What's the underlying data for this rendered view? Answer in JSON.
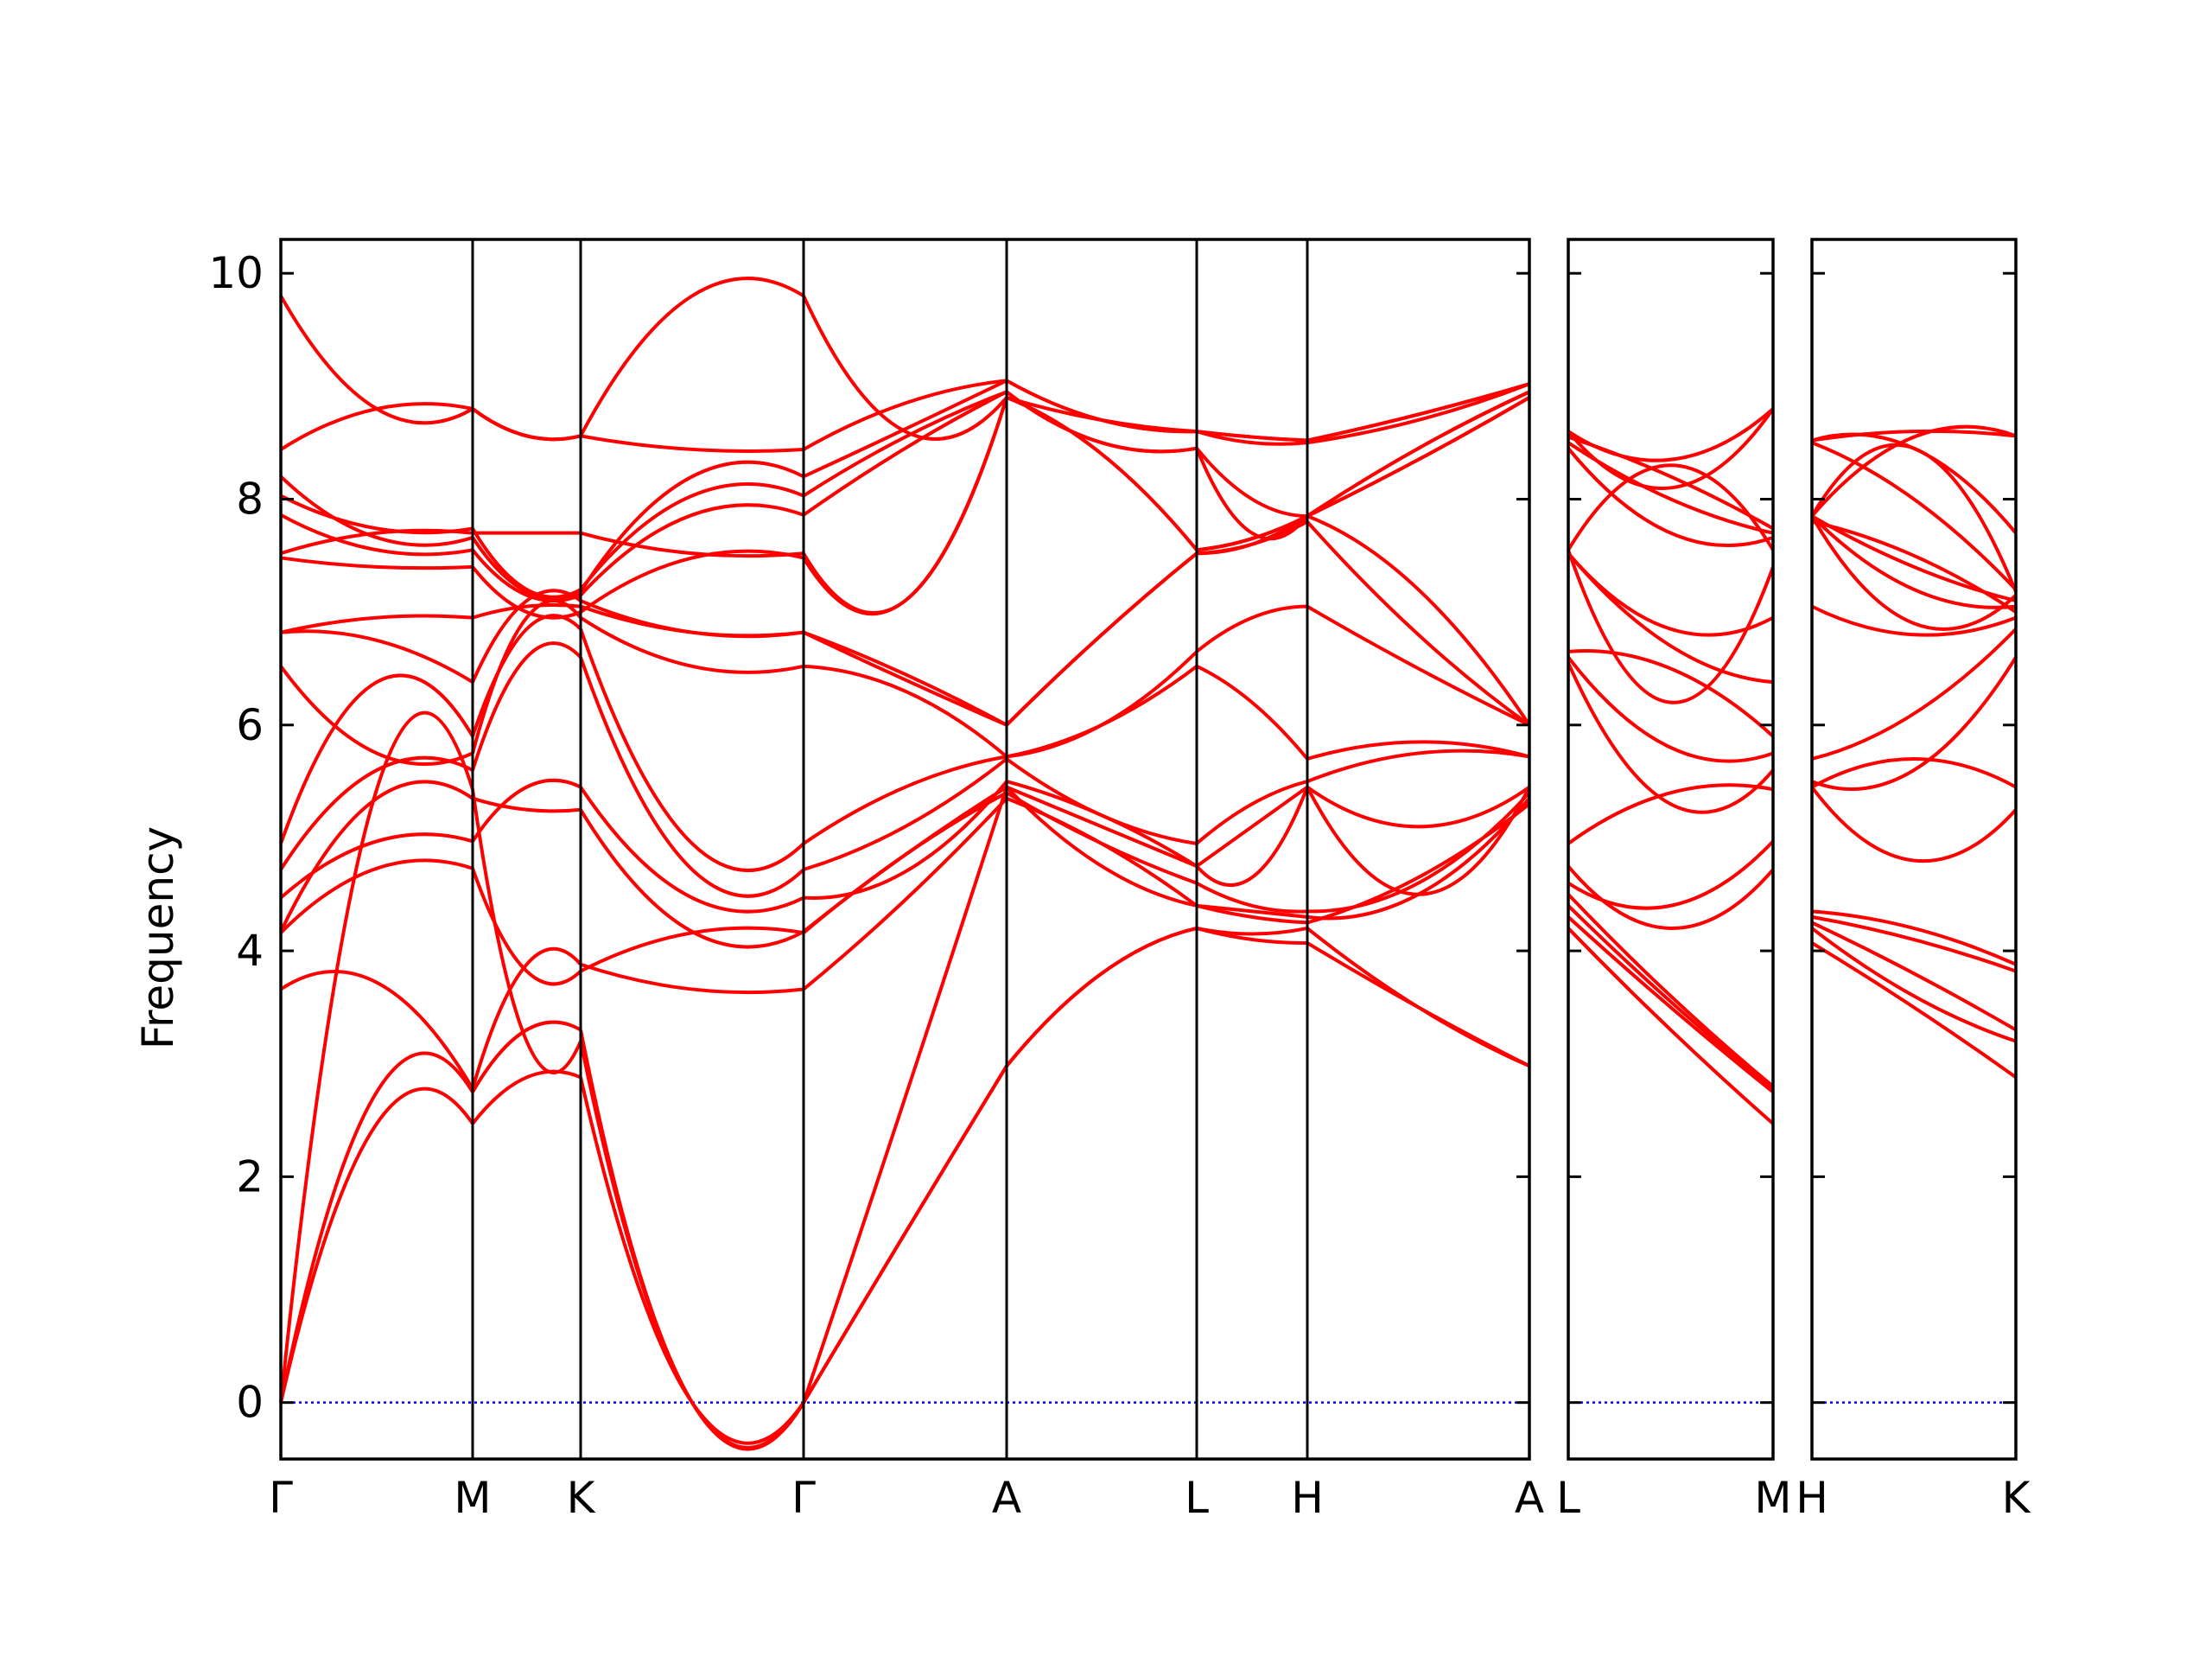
{
  "chart_data": {
    "type": "line",
    "ylabel": "Frequency",
    "ylim": [
      -0.5,
      10.3
    ],
    "yticks": [
      0,
      2,
      4,
      6,
      8,
      10
    ],
    "grid": false,
    "band_color": "#ff0000",
    "zero_line_color": "#0000ff",
    "panels": [
      {
        "labels": [
          "Γ",
          "M",
          "K",
          "Γ",
          "A",
          "L",
          "H",
          "A"
        ],
        "segments": [
          {
            "bands": [
              [
                0.0,
                2.47,
                2.47
              ],
              [
                0.0,
                2.75,
                2.75
              ],
              [
                0.0,
                5.43,
                5.43
              ],
              [
                3.66,
                3.72,
                2.78
              ],
              [
                4.16,
                4.73,
                4.73
              ],
              [
                4.17,
                5.35,
                5.35
              ],
              [
                4.47,
                4.97,
                4.97
              ],
              [
                4.72,
                5.6,
                5.6
              ],
              [
                4.95,
                6.38,
                5.9
              ],
              [
                6.52,
                5.75,
                5.75
              ],
              [
                6.82,
                6.75,
                6.38
              ],
              [
                6.82,
                6.95,
                6.95
              ],
              [
                7.48,
                7.4,
                7.4
              ],
              [
                7.52,
                7.7,
                7.7
              ],
              [
                7.86,
                7.55,
                7.55
              ],
              [
                8.03,
                7.74,
                7.74
              ],
              [
                8.2,
                7.66,
                7.66
              ],
              [
                8.44,
                8.8,
                8.8
              ],
              [
                9.8,
                8.8,
                8.8
              ]
            ]
          },
          {
            "bands": [
              [
                2.47,
                2.88,
                2.88
              ],
              [
                2.75,
                3.3,
                3.3
              ],
              [
                5.43,
                3.2,
                3.2
              ],
              [
                2.78,
                3.88,
                3.88
              ],
              [
                4.73,
                3.82,
                3.82
              ],
              [
                5.35,
                5.25,
                5.25
              ],
              [
                4.97,
                5.45,
                5.45
              ],
              [
                5.6,
                6.6,
                6.6
              ],
              [
                5.9,
                6.85,
                6.85
              ],
              [
                5.75,
                6.95,
                6.95
              ],
              [
                6.38,
                7.1,
                7.1
              ],
              [
                6.95,
                7.05,
                7.05
              ],
              [
                7.4,
                7.0,
                7.0
              ],
              [
                7.7,
                7.7,
                7.7
              ],
              [
                7.55,
                7.15,
                7.15
              ],
              [
                7.74,
                7.2,
                7.2
              ],
              [
                7.66,
                7.18,
                7.18
              ],
              [
                8.8,
                8.56,
                8.56
              ],
              [
                8.8,
                8.56,
                8.56
              ]
            ]
          },
          {
            "bands": [
              [
                2.88,
                0.0,
                0.0
              ],
              [
                3.3,
                0.0,
                0.0
              ],
              [
                3.2,
                0.0,
                0.0
              ],
              [
                3.88,
                3.66,
                3.66
              ],
              [
                3.82,
                4.16,
                4.16
              ],
              [
                5.25,
                4.17,
                4.17
              ],
              [
                5.45,
                4.47,
                4.47
              ],
              [
                6.6,
                4.72,
                4.72
              ],
              [
                6.85,
                4.95,
                4.95
              ],
              [
                6.95,
                6.52,
                6.52
              ],
              [
                7.1,
                6.82,
                6.82
              ],
              [
                7.05,
                6.82,
                6.82
              ],
              [
                7.0,
                7.48,
                7.48
              ],
              [
                7.7,
                7.52,
                7.52
              ],
              [
                7.15,
                7.86,
                7.86
              ],
              [
                7.2,
                8.03,
                8.03
              ],
              [
                7.18,
                8.2,
                8.2
              ],
              [
                8.56,
                8.44,
                8.44
              ],
              [
                8.56,
                9.8,
                9.8
              ]
            ]
          },
          {
            "bands": [
              [
                0.0,
                1.5,
                2.98
              ],
              [
                0.0,
                1.5,
                2.98
              ],
              [
                0.0,
                2.7,
                5.45
              ],
              [
                3.66,
                4.45,
                5.35
              ],
              [
                4.16,
                4.85,
                5.4
              ],
              [
                4.17,
                4.85,
                5.45
              ],
              [
                4.47,
                4.7,
                5.5
              ],
              [
                4.72,
                5.1,
                5.7
              ],
              [
                4.95,
                5.45,
                5.72
              ],
              [
                6.52,
                6.3,
                5.72
              ],
              [
                6.82,
                6.4,
                6.0
              ],
              [
                6.82,
                6.45,
                6.0
              ],
              [
                7.48,
                7.1,
                8.9
              ],
              [
                7.52,
                7.1,
                8.9
              ],
              [
                7.86,
                8.45,
                8.95
              ],
              [
                8.03,
                8.55,
                8.95
              ],
              [
                8.2,
                8.62,
                9.05
              ],
              [
                8.44,
                8.85,
                9.05
              ],
              [
                9.8,
                8.6,
                8.9
              ]
            ]
          },
          {
            "bands": [
              [
                2.98,
                3.8,
                4.2
              ],
              [
                2.98,
                3.8,
                4.2
              ],
              [
                5.45,
                4.75,
                4.4
              ],
              [
                5.35,
                4.95,
                4.4
              ],
              [
                5.4,
                4.95,
                4.6
              ],
              [
                5.45,
                5.1,
                4.75
              ],
              [
                5.5,
                5.2,
                4.75
              ],
              [
                5.7,
                5.2,
                4.95
              ],
              [
                5.72,
                6.0,
                6.52
              ],
              [
                5.72,
                6.0,
                6.65
              ],
              [
                6.0,
                6.8,
                7.52
              ],
              [
                6.0,
                6.8,
                7.52
              ],
              [
                8.9,
                8.4,
                7.55
              ],
              [
                8.9,
                8.4,
                7.55
              ],
              [
                8.95,
                8.5,
                8.45
              ],
              [
                8.95,
                8.5,
                8.45
              ],
              [
                9.05,
                8.7,
                8.6
              ],
              [
                9.05,
                8.7,
                8.6
              ],
              [
                8.9,
                8.7,
                8.6
              ]
            ]
          },
          {
            "bands": [
              [
                4.2,
                4.1,
                4.07
              ],
              [
                4.2,
                4.15,
                4.2
              ],
              [
                4.4,
                4.3,
                4.25
              ],
              [
                4.4,
                4.35,
                4.3
              ],
              [
                4.6,
                4.4,
                4.35
              ],
              [
                4.75,
                4.65,
                5.45
              ],
              [
                4.75,
                5.1,
                5.45
              ],
              [
                4.95,
                5.3,
                5.5
              ],
              [
                6.52,
                6.2,
                5.7
              ],
              [
                6.65,
                6.95,
                7.05
              ],
              [
                7.52,
                7.6,
                7.8
              ],
              [
                7.52,
                7.6,
                7.85
              ],
              [
                7.55,
                7.65,
                7.85
              ],
              [
                7.55,
                7.65,
                7.85
              ],
              [
                8.45,
                7.7,
                7.85
              ],
              [
                8.45,
                8.0,
                7.85
              ],
              [
                8.6,
                8.5,
                8.5
              ],
              [
                8.6,
                8.55,
                8.52
              ],
              [
                8.6,
                8.55,
                8.52
              ]
            ]
          },
          {
            "bands": [
              [
                4.07,
                3.5,
                2.98
              ],
              [
                4.2,
                3.5,
                2.98
              ],
              [
                4.25,
                4.65,
                5.3
              ],
              [
                4.3,
                4.5,
                5.35
              ],
              [
                4.35,
                4.6,
                5.4
              ],
              [
                5.45,
                4.5,
                5.45
              ],
              [
                5.45,
                5.1,
                5.45
              ],
              [
                5.5,
                5.75,
                5.72
              ],
              [
                5.7,
                5.85,
                5.72
              ],
              [
                7.05,
                6.5,
                6.0
              ],
              [
                7.8,
                6.8,
                6.0
              ],
              [
                7.85,
                8.35,
                8.9
              ],
              [
                7.85,
                8.35,
                8.9
              ],
              [
                7.85,
                8.45,
                8.95
              ],
              [
                7.85,
                8.45,
                8.95
              ],
              [
                8.5,
                8.7,
                9.02
              ],
              [
                8.52,
                8.75,
                9.02
              ],
              [
                8.52,
                8.75,
                9.02
              ],
              [
                7.85,
                7.2,
                6.0
              ]
            ]
          }
        ]
      },
      {
        "labels": [
          "L",
          "M"
        ],
        "segments": [
          {
            "bands": [
              [
                4.2,
                3.3,
                2.47
              ],
              [
                4.3,
                3.5,
                2.75
              ],
              [
                4.4,
                3.55,
                2.78
              ],
              [
                4.5,
                3.6,
                2.8
              ],
              [
                4.75,
                4.2,
                4.72
              ],
              [
                4.6,
                4.4,
                4.97
              ],
              [
                4.95,
                5.4,
                5.43
              ],
              [
                6.55,
                5.3,
                5.6
              ],
              [
                6.6,
                5.8,
                5.75
              ],
              [
                6.65,
                6.5,
                5.9
              ],
              [
                7.52,
                6.7,
                6.38
              ],
              [
                7.52,
                6.85,
                6.95
              ],
              [
                7.55,
                6.2,
                7.4
              ],
              [
                7.55,
                8.3,
                7.55
              ],
              [
                8.45,
                7.7,
                7.66
              ],
              [
                8.5,
                8.0,
                7.7
              ],
              [
                8.55,
                8.2,
                7.74
              ],
              [
                8.6,
                8.1,
                8.8
              ],
              [
                8.6,
                8.35,
                8.8
              ]
            ]
          }
        ]
      },
      {
        "labels": [
          "H",
          "K"
        ],
        "segments": [
          {
            "bands": [
              [
                4.07,
                3.5,
                2.88
              ],
              [
                4.2,
                3.6,
                3.2
              ],
              [
                4.25,
                3.8,
                3.3
              ],
              [
                4.3,
                4.1,
                3.82
              ],
              [
                4.35,
                4.2,
                3.88
              ],
              [
                5.45,
                4.8,
                5.25
              ],
              [
                5.45,
                5.7,
                5.45
              ],
              [
                5.5,
                5.6,
                6.6
              ],
              [
                5.7,
                6.1,
                6.85
              ],
              [
                7.05,
                6.8,
                6.95
              ],
              [
                7.8,
                7.5,
                7.0
              ],
              [
                7.85,
                7.2,
                7.05
              ],
              [
                7.85,
                7.4,
                7.1
              ],
              [
                7.85,
                6.9,
                7.15
              ],
              [
                7.85,
                8.45,
                7.18
              ],
              [
                8.5,
                8.0,
                7.2
              ],
              [
                8.52,
                8.45,
                7.7
              ],
              [
                8.52,
                8.6,
                8.56
              ],
              [
                7.85,
                8.55,
                8.56
              ]
            ]
          }
        ]
      }
    ]
  }
}
